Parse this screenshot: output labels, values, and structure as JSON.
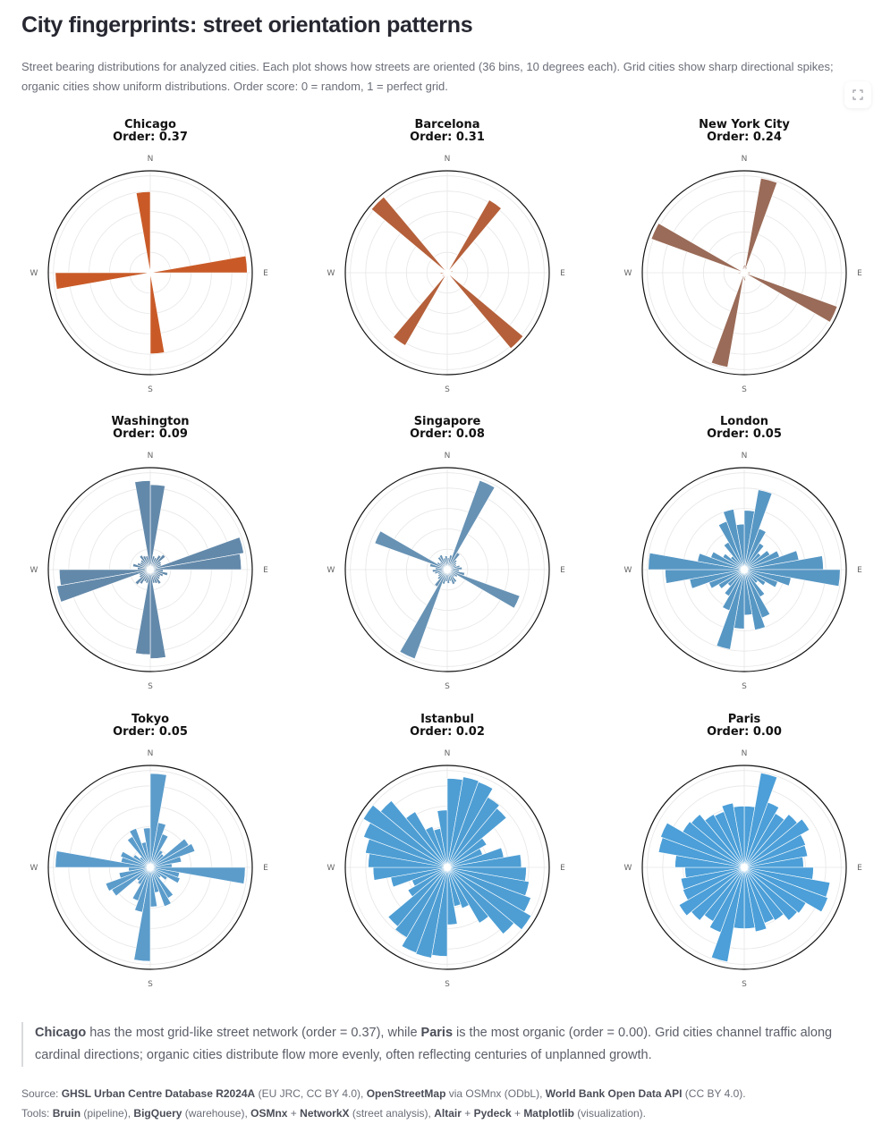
{
  "header": {
    "title": "City fingerprints: street orientation patterns",
    "caption": "Street bearing distributions for analyzed cities. Each plot shows how streets are oriented (36 bins, 10 degrees each). Grid cities show sharp directional spikes; organic cities show uniform distributions. Order score: 0 = random, 1 = perfect grid."
  },
  "toolbar": {
    "expand_icon": "fullscreen-icon"
  },
  "compass": {
    "n": "N",
    "e": "E",
    "s": "S",
    "w": "W"
  },
  "chart_data": {
    "type": "polar_bar",
    "bins": 36,
    "bin_width_deg": 10,
    "note": "values are relative bar lengths (fraction of outer radius), bin i covers bearings i*10 to i*10+10 degrees clockwise from North",
    "charts": [
      {
        "city": "Chicago",
        "order_label": "Order: 0.37",
        "order": 0.37,
        "color": "#c95a27",
        "values": [
          0.03,
          0.01,
          0.01,
          0.01,
          0.01,
          0.01,
          0.01,
          0.02,
          0.98,
          0.02,
          0.01,
          0.01,
          0.01,
          0.01,
          0.01,
          0.01,
          0.02,
          0.82,
          0.03,
          0.01,
          0.01,
          0.01,
          0.01,
          0.01,
          0.01,
          0.02,
          0.96,
          0.02,
          0.01,
          0.01,
          0.01,
          0.01,
          0.01,
          0.01,
          0.02,
          0.82
        ]
      },
      {
        "city": "Barcelona",
        "order_label": "Order: 0.31",
        "order": 0.31,
        "color": "#b5603a",
        "values": [
          0.03,
          0.02,
          0.02,
          0.85,
          0.02,
          0.02,
          0.02,
          0.06,
          0.03,
          0.02,
          0.02,
          0.02,
          0.03,
          1.0,
          0.03,
          0.02,
          0.02,
          0.02,
          0.03,
          0.02,
          0.02,
          0.85,
          0.02,
          0.06,
          0.02,
          0.02,
          0.07,
          0.02,
          0.02,
          0.02,
          0.02,
          1.0,
          0.03,
          0.02,
          0.02,
          0.02
        ]
      },
      {
        "city": "New York City",
        "order_label": "Order: 0.24",
        "order": 0.24,
        "color": "#9a6b58",
        "values": [
          0.08,
          0.97,
          0.06,
          0.04,
          0.03,
          0.03,
          0.03,
          0.04,
          0.06,
          0.06,
          0.03,
          1.0,
          0.04,
          0.03,
          0.03,
          0.03,
          0.05,
          0.08,
          0.06,
          0.97,
          0.05,
          0.04,
          0.03,
          0.03,
          0.03,
          0.04,
          0.06,
          0.05,
          0.04,
          1.0,
          0.04,
          0.03,
          0.03,
          0.03,
          0.05,
          0.07
        ]
      },
      {
        "city": "Washington",
        "order_label": "Order: 0.09",
        "order": 0.09,
        "color": "#6389aa",
        "values": [
          0.86,
          0.14,
          0.13,
          0.17,
          0.2,
          0.13,
          0.12,
          0.96,
          0.92,
          0.13,
          0.18,
          0.14,
          0.12,
          0.13,
          0.17,
          0.15,
          0.14,
          0.9,
          0.86,
          0.14,
          0.13,
          0.17,
          0.2,
          0.13,
          0.12,
          0.96,
          0.92,
          0.13,
          0.18,
          0.14,
          0.12,
          0.13,
          0.17,
          0.15,
          0.14,
          0.9
        ]
      },
      {
        "city": "Singapore",
        "order_label": "Order: 0.08",
        "order": 0.08,
        "color": "#6792b4",
        "values": [
          0.12,
          0.15,
          0.96,
          0.2,
          0.13,
          0.11,
          0.1,
          0.13,
          0.15,
          0.12,
          0.18,
          0.78,
          0.12,
          0.1,
          0.15,
          0.16,
          0.12,
          0.14,
          0.12,
          0.15,
          0.96,
          0.2,
          0.13,
          0.11,
          0.1,
          0.13,
          0.15,
          0.12,
          0.18,
          0.78,
          0.12,
          0.1,
          0.15,
          0.16,
          0.12,
          0.14
        ]
      },
      {
        "city": "London",
        "order_label": "Order: 0.05",
        "order": 0.05,
        "color": "#5797c4",
        "values": [
          0.6,
          0.82,
          0.44,
          0.31,
          0.22,
          0.3,
          0.38,
          0.56,
          0.8,
          0.97,
          0.48,
          0.36,
          0.25,
          0.18,
          0.32,
          0.52,
          0.62,
          0.46,
          0.6,
          0.82,
          0.44,
          0.31,
          0.22,
          0.3,
          0.38,
          0.56,
          0.8,
          0.97,
          0.48,
          0.36,
          0.25,
          0.18,
          0.32,
          0.52,
          0.62,
          0.46
        ]
      },
      {
        "city": "Tokyo",
        "order_label": "Order: 0.05",
        "order": 0.05,
        "color": "#5b9ccb",
        "values": [
          0.95,
          0.46,
          0.36,
          0.2,
          0.18,
          0.45,
          0.48,
          0.32,
          0.22,
          0.96,
          0.3,
          0.32,
          0.2,
          0.14,
          0.36,
          0.42,
          0.26,
          0.4,
          0.95,
          0.46,
          0.36,
          0.2,
          0.18,
          0.45,
          0.48,
          0.32,
          0.22,
          0.96,
          0.3,
          0.32,
          0.2,
          0.14,
          0.36,
          0.42,
          0.26,
          0.4
        ]
      },
      {
        "city": "Istanbul",
        "order_label": "Order: 0.02",
        "order": 0.02,
        "color": "#4e9ed4",
        "values": [
          0.9,
          0.93,
          0.92,
          0.82,
          0.78,
          0.46,
          0.38,
          0.58,
          0.75,
          0.8,
          0.84,
          0.9,
          0.98,
          0.88,
          0.65,
          0.44,
          0.4,
          0.58,
          0.9,
          0.93,
          0.92,
          0.82,
          0.78,
          0.46,
          0.38,
          0.58,
          0.75,
          0.8,
          0.84,
          0.9,
          0.98,
          0.88,
          0.65,
          0.44,
          0.4,
          0.58
        ]
      },
      {
        "city": "Paris",
        "order_label": "Order: 0.00",
        "order": 0.0,
        "color": "#4c9fd8",
        "values": [
          0.62,
          0.97,
          0.7,
          0.63,
          0.7,
          0.76,
          0.66,
          0.65,
          0.6,
          0.7,
          0.88,
          0.9,
          0.72,
          0.7,
          0.62,
          0.6,
          0.66,
          0.62,
          0.62,
          0.97,
          0.7,
          0.63,
          0.7,
          0.76,
          0.66,
          0.65,
          0.6,
          0.7,
          0.88,
          0.9,
          0.72,
          0.7,
          0.62,
          0.6,
          0.66,
          0.62
        ]
      }
    ]
  },
  "summary": {
    "city_max": "Chicago",
    "part1": " has the most grid-like street network (order = 0.37), while ",
    "city_min": "Paris",
    "part2": " is the most organic (order = 0.00). Grid cities channel traffic along cardinal directions; organic cities distribute flow more evenly, often reflecting centuries of unplanned growth."
  },
  "footer": {
    "source_label": "Source: ",
    "source_items": [
      {
        "name": "GHSL Urban Centre Database R2024A",
        "detail": " (EU JRC, CC BY 4.0), "
      },
      {
        "name": "OpenStreetMap",
        "detail": " via OSMnx (ODbL), "
      },
      {
        "name": "World Bank Open Data API",
        "detail": " (CC BY 4.0)."
      }
    ],
    "tools_label": "Tools: ",
    "tools_items": [
      {
        "name": "Bruin",
        "detail": " (pipeline), "
      },
      {
        "name": "BigQuery",
        "detail": " (warehouse), "
      },
      {
        "name": "OSMnx",
        "detail": " + "
      },
      {
        "name": "NetworkX",
        "detail": " (street analysis), "
      },
      {
        "name": "Altair",
        "detail": " + "
      },
      {
        "name": "Pydeck",
        "detail": " + "
      },
      {
        "name": "Matplotlib",
        "detail": " (visualization)."
      }
    ]
  }
}
